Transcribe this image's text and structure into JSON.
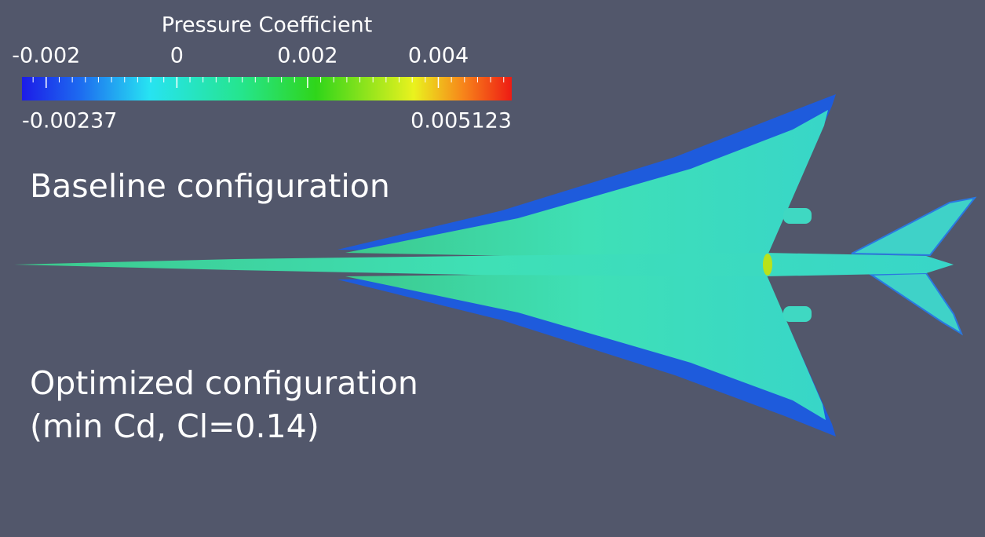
{
  "colorbar": {
    "title": "Pressure Coefficient",
    "range": [
      -0.00237,
      0.005123
    ],
    "ticks": [
      -0.002,
      0,
      0.002,
      0.004
    ]
  },
  "annotations": [
    "Baseline configuration",
    "Optimized configuration",
    "(min Cd, Cl=0.14)"
  ]
}
